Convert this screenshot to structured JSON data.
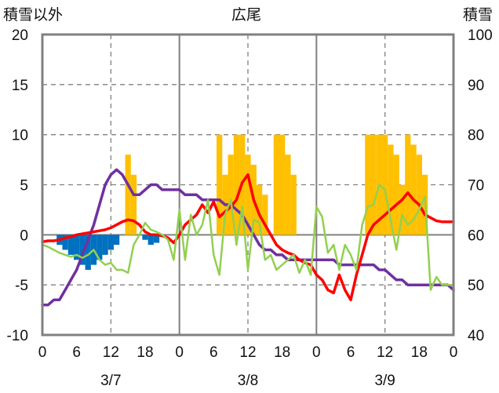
{
  "chart_data": {
    "type": "line",
    "title": "広尾",
    "ylabel": "積雪以外",
    "y2label": "積雪",
    "ylim": [
      -10,
      20
    ],
    "yticks": [
      20,
      15,
      10,
      5,
      0,
      -5,
      -10
    ],
    "y2lim": [
      40,
      100
    ],
    "y2ticks": [
      100,
      90,
      80,
      70,
      60,
      50,
      40
    ],
    "hours_total": 72,
    "x_tick_labels": [
      "0",
      "6",
      "12",
      "18",
      "0",
      "6",
      "12",
      "18",
      "0",
      "6",
      "12",
      "18",
      "0"
    ],
    "day_labels": [
      "3/7",
      "3/8",
      "3/9"
    ],
    "series": [
      {
        "axis": "right",
        "color": "#7030a0",
        "values": [
          46,
          46,
          47,
          47,
          49,
          51,
          53,
          56,
          59,
          62,
          66,
          70,
          72,
          73,
          72,
          70,
          68,
          68,
          69,
          70,
          70,
          69,
          69,
          69,
          69,
          68,
          68,
          68,
          67,
          67,
          67,
          67,
          66,
          66,
          65,
          64,
          62,
          60,
          58,
          57,
          57,
          56,
          56,
          55,
          55,
          55,
          55,
          55,
          55,
          55,
          55,
          55,
          54,
          54,
          54,
          54,
          54,
          54,
          54,
          53,
          53,
          52,
          51,
          51,
          50,
          50,
          50,
          50,
          50,
          50,
          50,
          50,
          49
        ]
      },
      {
        "axis": "left",
        "color": "#ff0000",
        "values": [
          -0.7,
          -0.6,
          -0.6,
          -0.5,
          -0.3,
          -0.2,
          0,
          0.1,
          0.2,
          0.3,
          0.4,
          0.5,
          0.7,
          1,
          1.3,
          1.5,
          1.4,
          1,
          0.3,
          0,
          0,
          -0.1,
          -0.3,
          -0.8,
          0,
          1,
          1.5,
          2,
          3,
          2.2,
          3.3,
          1.8,
          2.3,
          2.8,
          3.5,
          5.2,
          6,
          3.5,
          2,
          1,
          0,
          -1,
          -1.5,
          -1.8,
          -2,
          -2.5,
          -2.8,
          -3,
          -4,
          -4.5,
          -5.5,
          -5.8,
          -4,
          -5.5,
          -6.5,
          -4,
          -2,
          0,
          1,
          1.5,
          2,
          2.5,
          3,
          3.5,
          4.2,
          3.5,
          3,
          2,
          1.7,
          1.4,
          1.3,
          1.3,
          1.3
        ]
      },
      {
        "axis": "left",
        "color": "#92d050",
        "values": [
          -1,
          -1.2,
          -1.5,
          -1.8,
          -2,
          -2.2,
          -2,
          -2.3,
          -2,
          -1.5,
          -2.5,
          -3,
          -2.8,
          -3.5,
          -3.5,
          -3.8,
          -1,
          0,
          1.2,
          0.5,
          0.3,
          0,
          -0.5,
          -2.5,
          2.5,
          -2.5,
          2,
          0,
          1,
          3.5,
          -2,
          -4,
          2,
          3.5,
          -1,
          2.8,
          -3.5,
          1.5,
          1.2,
          -2.5,
          -2,
          -3.5,
          -3,
          -2.5,
          -2,
          -3.8,
          -2.5,
          -4,
          2.8,
          1.8,
          -1.8,
          -1,
          -3.5,
          -1,
          -2,
          -3.5,
          1,
          2.8,
          3,
          5,
          4.5,
          1.5,
          -1.5,
          2,
          1,
          1.5,
          2.5,
          3.8,
          -5.5,
          -4.2,
          -5,
          -5,
          -5
        ]
      }
    ],
    "bars_positive": {
      "color": "#ffc000",
      "hours": [
        15,
        16,
        31,
        32,
        33,
        34,
        35,
        36,
        37,
        38,
        39,
        41,
        42,
        43,
        44,
        57,
        58,
        59,
        60,
        61,
        62,
        63,
        64,
        65,
        66,
        67
      ],
      "values": [
        8,
        6,
        10,
        6,
        8,
        10,
        10,
        8,
        7,
        5,
        4,
        10,
        10,
        8,
        6,
        10,
        10,
        10,
        10,
        9,
        8,
        5,
        10,
        9,
        8,
        6
      ]
    },
    "bars_negative": {
      "color": "#0070c0",
      "hours": [
        3,
        4,
        5,
        6,
        7,
        8,
        9,
        10,
        11,
        12,
        13,
        18,
        19,
        20
      ],
      "values": [
        -1,
        -1.5,
        -2,
        -2.5,
        -3,
        -3.5,
        -3,
        -2.5,
        -2,
        -1.5,
        -1,
        -0.5,
        -1,
        -0.8
      ]
    },
    "grid": true,
    "legend": "none"
  }
}
